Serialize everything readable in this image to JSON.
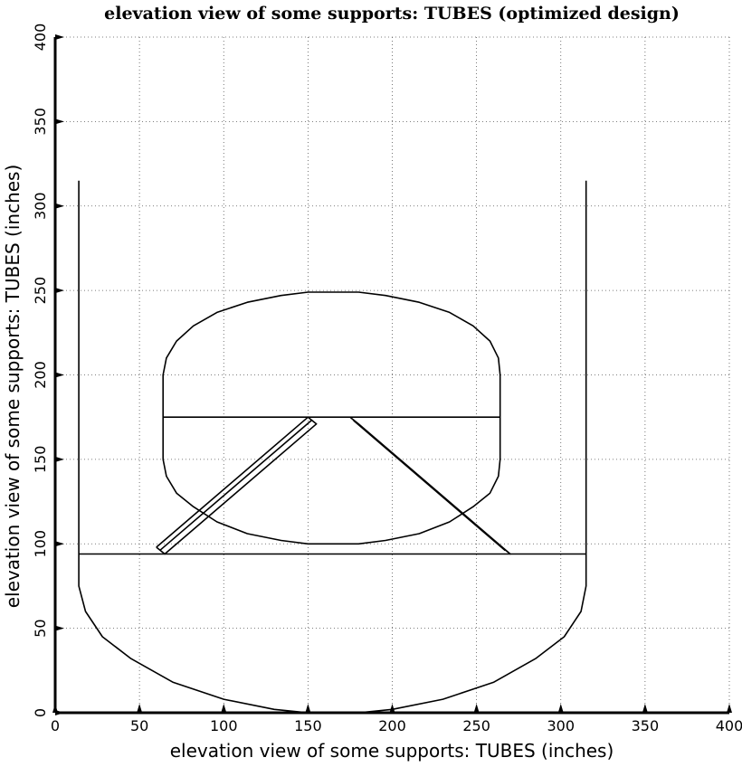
{
  "chart_data": {
    "type": "line",
    "title": "elevation view of some supports: TUBES (optimized design)",
    "xlabel": "elevation view of some supports: TUBES (inches)",
    "ylabel": "elevation view of some supports: TUBES (inches)",
    "xlim": [
      0,
      400
    ],
    "ylim": [
      0,
      400
    ],
    "xticks": [
      0,
      50,
      100,
      150,
      200,
      250,
      300,
      350,
      400
    ],
    "yticks": [
      0,
      50,
      100,
      150,
      200,
      250,
      300,
      350,
      400
    ],
    "grid": true,
    "color": "#000000",
    "series": [
      {
        "values": [
          [
            14,
            315
          ],
          [
            14,
            75
          ],
          [
            18,
            60
          ],
          [
            28,
            45
          ],
          [
            45,
            32
          ],
          [
            70,
            18
          ],
          [
            100,
            8
          ],
          [
            130,
            2
          ],
          [
            150,
            0
          ],
          [
            180,
            0
          ],
          [
            200,
            2
          ],
          [
            230,
            8
          ],
          [
            260,
            18
          ],
          [
            285,
            32
          ],
          [
            302,
            45
          ],
          [
            312,
            60
          ],
          [
            315,
            75
          ],
          [
            315,
            315
          ]
        ]
      },
      {
        "values": [
          [
            14,
            94
          ],
          [
            315,
            94
          ]
        ]
      },
      {
        "values": [
          [
            64,
            175
          ],
          [
            264,
            175
          ]
        ]
      },
      {
        "values": [
          [
            64,
            150
          ],
          [
            66,
            140
          ],
          [
            72,
            130
          ],
          [
            82,
            122
          ],
          [
            96,
            113
          ],
          [
            114,
            106
          ],
          [
            134,
            102
          ],
          [
            150,
            100
          ],
          [
            180,
            100
          ],
          [
            196,
            102
          ],
          [
            216,
            106
          ],
          [
            234,
            113
          ],
          [
            248,
            122
          ],
          [
            258,
            130
          ],
          [
            263,
            140
          ],
          [
            264,
            150
          ],
          [
            264,
            200
          ],
          [
            263,
            210
          ],
          [
            258,
            220
          ],
          [
            248,
            229
          ],
          [
            234,
            237
          ],
          [
            216,
            243
          ],
          [
            196,
            247
          ],
          [
            180,
            249
          ],
          [
            150,
            249
          ],
          [
            134,
            247
          ],
          [
            114,
            243
          ],
          [
            96,
            237
          ],
          [
            82,
            229
          ],
          [
            72,
            220
          ],
          [
            66,
            210
          ],
          [
            64,
            200
          ],
          [
            64,
            150
          ]
        ]
      },
      {
        "values": [
          [
            60,
            98
          ],
          [
            150,
            175
          ],
          [
            155,
            171
          ],
          [
            65,
            94
          ],
          [
            60,
            98
          ]
        ]
      },
      {
        "values": [
          [
            62,
            96
          ],
          [
            152,
            173
          ]
        ]
      },
      {
        "values": [
          [
            175,
            175
          ],
          [
            265,
            98
          ],
          [
            270,
            94
          ],
          [
            180,
            171
          ],
          [
            175,
            175
          ]
        ]
      },
      {
        "values": [
          [
            177,
            173
          ],
          [
            267,
            96
          ]
        ]
      }
    ]
  }
}
